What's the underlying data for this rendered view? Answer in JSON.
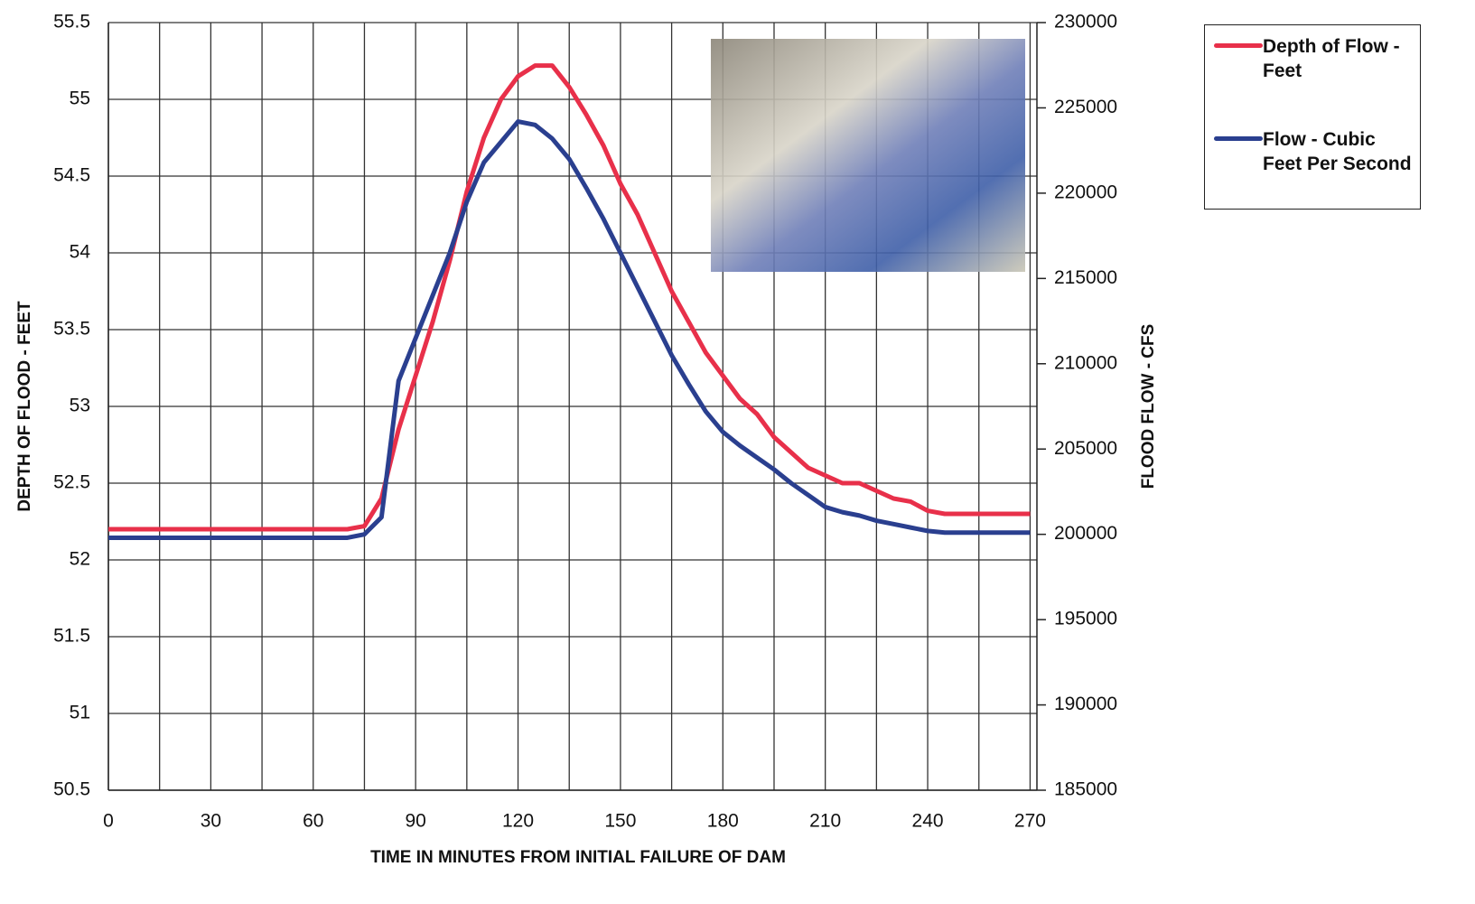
{
  "chart_data": {
    "type": "line",
    "x_label": "TIME IN MINUTES FROM INITIAL FAILURE OF DAM",
    "y_label": "DEPTH OF FLOOD - FEET",
    "y2_label": "FLOOD FLOW - CFS",
    "x": [
      0,
      5,
      10,
      15,
      20,
      25,
      30,
      35,
      40,
      45,
      50,
      55,
      60,
      65,
      70,
      75,
      80,
      85,
      90,
      95,
      100,
      105,
      110,
      115,
      120,
      125,
      130,
      135,
      140,
      145,
      150,
      155,
      160,
      165,
      170,
      175,
      180,
      185,
      190,
      195,
      200,
      205,
      210,
      215,
      220,
      225,
      230,
      235,
      240,
      245,
      250,
      255,
      260,
      265,
      270
    ],
    "series": [
      {
        "name": "Depth of Flow - Feet",
        "color": "#e8304a",
        "values": [
          52.2,
          52.2,
          52.2,
          52.2,
          52.2,
          52.2,
          52.2,
          52.2,
          52.2,
          52.2,
          52.2,
          52.2,
          52.2,
          52.2,
          52.2,
          52.22,
          52.4,
          52.85,
          53.2,
          53.55,
          53.95,
          54.4,
          54.75,
          55.0,
          55.15,
          55.22,
          55.22,
          55.08,
          54.9,
          54.7,
          54.45,
          54.25,
          54.0,
          53.75,
          53.55,
          53.35,
          53.2,
          53.05,
          52.95,
          52.8,
          52.7,
          52.6,
          52.55,
          52.5,
          52.5,
          52.45,
          52.4,
          52.38,
          52.32,
          52.3,
          52.3,
          52.3,
          52.3,
          52.3,
          52.3
        ]
      },
      {
        "name": "Flow - Cubic Feet Per Second",
        "color": "#2a3f8f",
        "axis": "y2",
        "values": [
          199800,
          199800,
          199800,
          199800,
          199800,
          199800,
          199800,
          199800,
          199800,
          199800,
          199800,
          199800,
          199800,
          199800,
          199800,
          200000,
          201000,
          209000,
          211500,
          214000,
          216500,
          219500,
          221800,
          223000,
          224200,
          224000,
          223200,
          222000,
          220300,
          218500,
          216500,
          214500,
          212500,
          210500,
          208800,
          207200,
          206000,
          205200,
          204500,
          203800,
          203000,
          202300,
          201600,
          201300,
          201100,
          200800,
          200600,
          200400,
          200200,
          200100,
          200100,
          200100,
          200100,
          200100,
          200100
        ]
      }
    ],
    "xlim": [
      0,
      272
    ],
    "xticks": [
      0,
      30,
      60,
      90,
      120,
      150,
      180,
      210,
      240,
      270
    ],
    "ylim": [
      50.5,
      55.5
    ],
    "yticks": [
      50.5,
      51,
      51.5,
      52,
      52.5,
      53,
      53.5,
      54,
      54.5,
      55,
      55.5
    ],
    "y2lim": [
      185000,
      230000
    ],
    "y2ticks": [
      185000,
      190000,
      195000,
      200000,
      205000,
      210000,
      215000,
      220000,
      225000,
      230000
    ],
    "grid": true
  }
}
